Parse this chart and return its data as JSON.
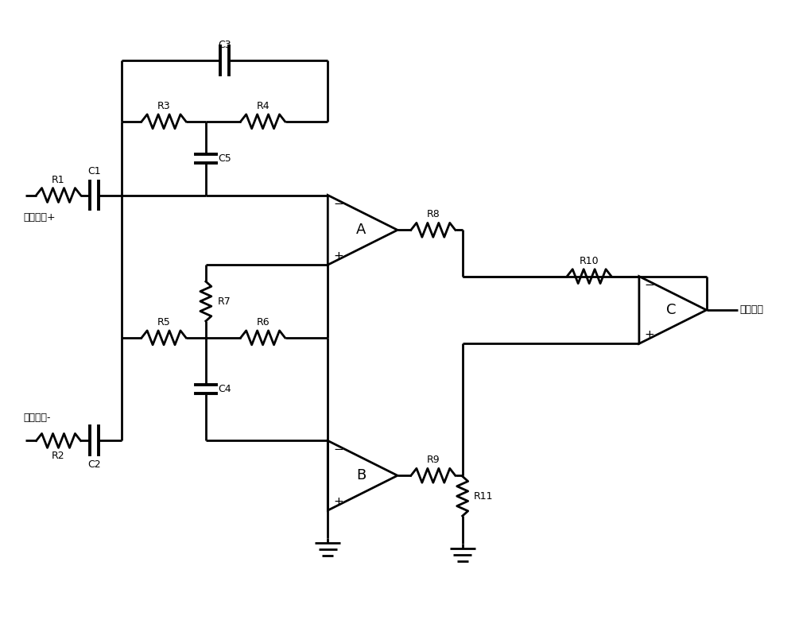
{
  "bg_color": "#ffffff",
  "line_color": "#000000",
  "lw": 2.0,
  "fig_w": 10.0,
  "fig_h": 7.8,
  "labels": {
    "charge_pos": "电荷信号+",
    "charge_neg": "电荷信号-",
    "voltage_out": "电压信号"
  }
}
